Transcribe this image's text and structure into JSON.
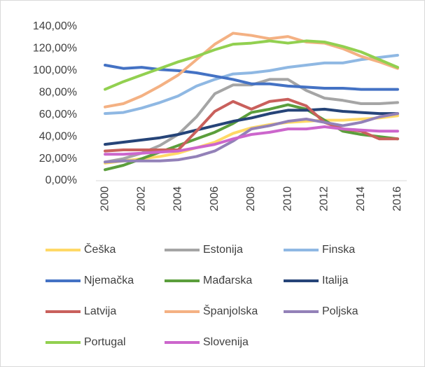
{
  "chart_data": {
    "type": "line",
    "categories": [
      "2000",
      null,
      "2002",
      null,
      "2004",
      null,
      "2006",
      null,
      "2008",
      null,
      "2010",
      null,
      "2012",
      null,
      "2014",
      null,
      "2016"
    ],
    "ylim": [
      0,
      140
    ],
    "yticks": [
      {
        "value": 0,
        "label": "0,00%"
      },
      {
        "value": 20,
        "label": "20,00%"
      },
      {
        "value": 40,
        "label": "40,00%"
      },
      {
        "value": 60,
        "label": "60,00%"
      },
      {
        "value": 80,
        "label": "80,00%"
      },
      {
        "value": 100,
        "label": "100,00%"
      },
      {
        "value": 120,
        "label": "120,00%"
      },
      {
        "value": 140,
        "label": "140,00%"
      }
    ],
    "grid": false,
    "series": [
      {
        "name": "Češka",
        "color": "#ffd966",
        "values": [
          16,
          18,
          20,
          22,
          25,
          30,
          35,
          43,
          48,
          51,
          53,
          54,
          55,
          55,
          56,
          57,
          59
        ]
      },
      {
        "name": "Estonija",
        "color": "#a5a5a5",
        "values": [
          17,
          20,
          25,
          32,
          42,
          58,
          79,
          87,
          87,
          92,
          92,
          82,
          75,
          73,
          70,
          70,
          71
        ]
      },
      {
        "name": "Finska",
        "color": "#8fb8e3",
        "values": [
          61,
          62,
          66,
          71,
          77,
          86,
          92,
          97,
          98,
          100,
          103,
          105,
          107,
          107,
          110,
          112,
          114
        ]
      },
      {
        "name": "Njemačka",
        "color": "#4472c4",
        "values": [
          105,
          102,
          103,
          101,
          100,
          98,
          95,
          92,
          88,
          88,
          86,
          85,
          84,
          84,
          83,
          83,
          83
        ]
      },
      {
        "name": "Mađarska",
        "color": "#5b9e3c",
        "values": [
          10,
          14,
          20,
          26,
          32,
          38,
          44,
          52,
          62,
          65,
          69,
          65,
          55,
          45,
          42,
          40,
          38
        ]
      },
      {
        "name": "Italija",
        "color": "#264478",
        "values": [
          33,
          35,
          37,
          39,
          42,
          46,
          50,
          54,
          57,
          61,
          64,
          64,
          65,
          63,
          62,
          61,
          61
        ]
      },
      {
        "name": "Latvija",
        "color": "#c9605c",
        "values": [
          27,
          28,
          28,
          28,
          28,
          45,
          63,
          72,
          65,
          72,
          74,
          68,
          53,
          47,
          45,
          38,
          38
        ]
      },
      {
        "name": "Španjolska",
        "color": "#f4b183",
        "values": [
          67,
          70,
          77,
          86,
          96,
          110,
          124,
          134,
          132,
          129,
          131,
          126,
          125,
          120,
          113,
          108,
          102
        ]
      },
      {
        "name": "Poljska",
        "color": "#9381b8",
        "values": [
          17,
          18,
          18,
          18,
          19,
          22,
          27,
          36,
          47,
          50,
          54,
          56,
          53,
          50,
          53,
          58,
          61
        ]
      },
      {
        "name": "Portugal",
        "color": "#92d050",
        "values": [
          83,
          90,
          96,
          102,
          108,
          113,
          119,
          124,
          125,
          127,
          125,
          127,
          126,
          122,
          117,
          110,
          103
        ]
      },
      {
        "name": "Slovenija",
        "color": "#cc66cc",
        "values": [
          24,
          24,
          25,
          26,
          27,
          30,
          33,
          38,
          42,
          44,
          47,
          47,
          49,
          47,
          46,
          45,
          45
        ]
      }
    ]
  }
}
